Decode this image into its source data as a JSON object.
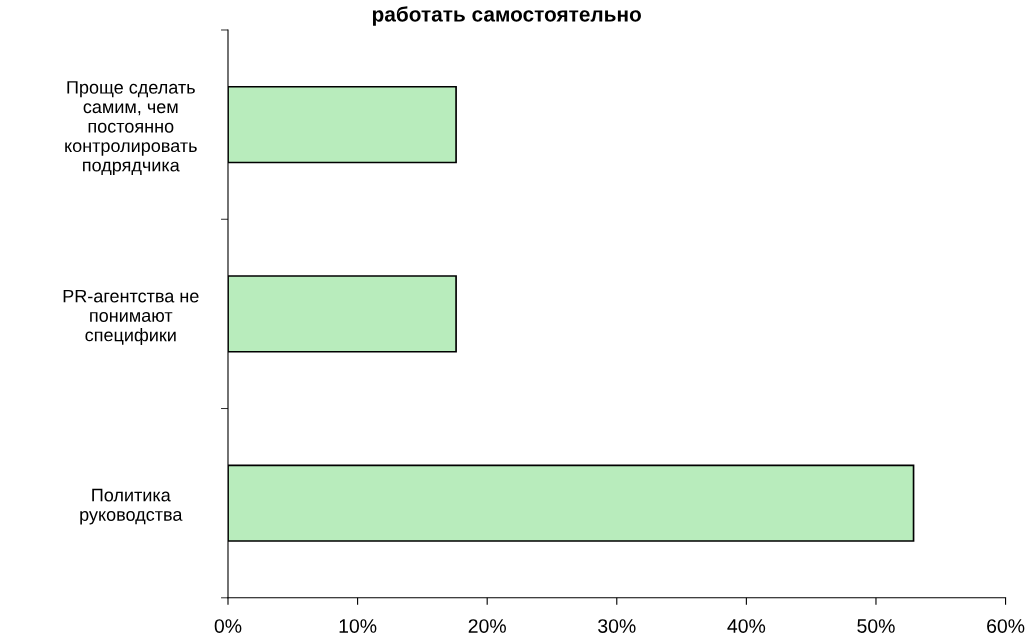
{
  "chart_data": {
    "type": "bar",
    "orientation": "horizontal",
    "title": "работать самостоятельно",
    "categories": [
      "Проще сделать\nсамим, чем\nпостоянно\nконтролировать\nподрядчика",
      "PR-агентства не\nпонимают\nспецифики",
      "Политика\nруководства"
    ],
    "values": [
      17.6,
      17.6,
      52.9
    ],
    "color": "#b8ecbc",
    "xlim": [
      0,
      60
    ],
    "xticks": [
      {
        "value": 0,
        "label": "0%"
      },
      {
        "value": 10,
        "label": "10%"
      },
      {
        "value": 20,
        "label": "20%"
      },
      {
        "value": 30,
        "label": "30%"
      },
      {
        "value": 40,
        "label": "40%"
      },
      {
        "value": 50,
        "label": "50%"
      },
      {
        "value": 60,
        "label": "60%"
      }
    ],
    "grid": false,
    "legend": false
  }
}
